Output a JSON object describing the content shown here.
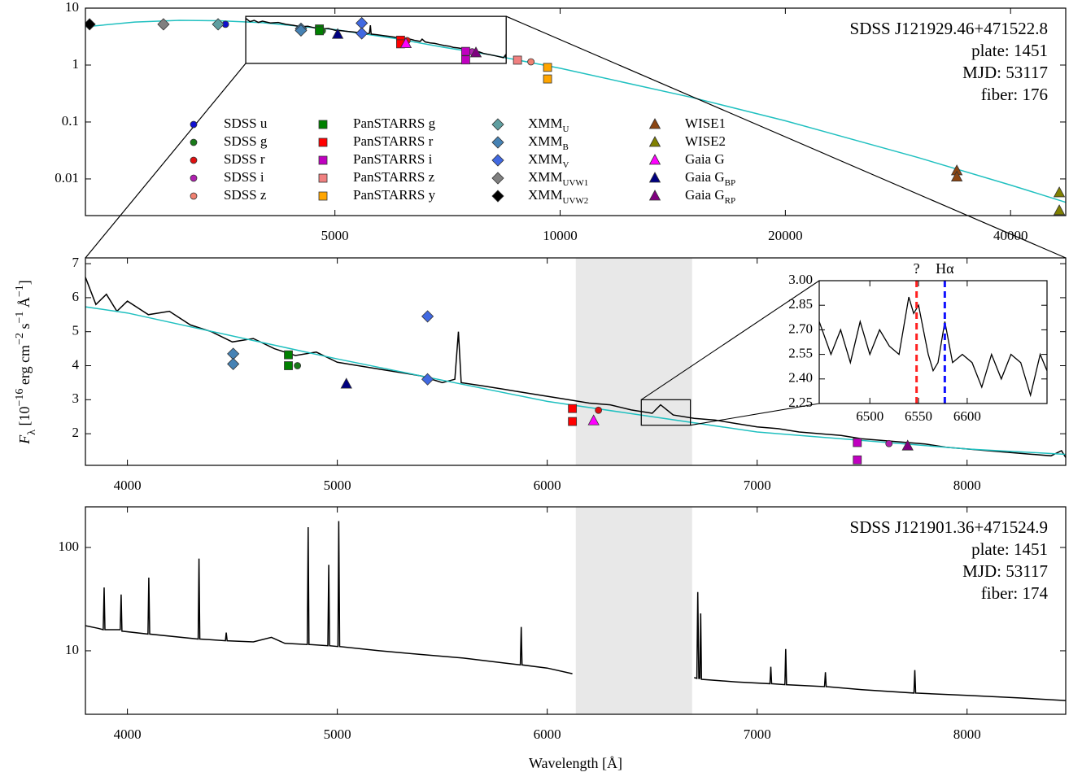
{
  "chart_data": [
    {
      "type": "sed",
      "xscale": "log",
      "yscale": "log",
      "xlim": [
        2320,
        47400
      ],
      "ylim": [
        0.00227,
        10
      ],
      "xticks": [
        5000,
        10000,
        20000,
        40000
      ],
      "yticks": [
        0.01,
        0.1,
        1,
        10
      ],
      "text_lines": [
        "SDSS J121929.46+471522.8",
        "plate: 1451",
        "MJD: 53117",
        "fiber: 176"
      ],
      "model": {
        "color": "#20c0c0",
        "x": [
          2320,
          2700,
          3100,
          3500,
          4000,
          5000,
          6000,
          7000,
          8000,
          10000,
          15000,
          20000,
          30000,
          40000,
          47400
        ],
        "values": [
          4.7,
          5.7,
          6.1,
          6.0,
          5.55,
          4.2,
          2.95,
          2.05,
          1.55,
          0.88,
          0.27,
          0.105,
          0.024,
          0.0078,
          0.0039
        ]
      },
      "series": [
        {
          "name": "SDSS u",
          "marker": "circle",
          "color": "#1010d0",
          "x": [
            3570
          ],
          "values": [
            5.2
          ]
        },
        {
          "name": "SDSS g",
          "marker": "circle",
          "color": "#1a7a1a",
          "x": [
            4810
          ],
          "values": [
            4.0
          ]
        },
        {
          "name": "SDSS r",
          "marker": "circle",
          "color": "#e01010",
          "x": [
            6244
          ],
          "values": [
            2.69
          ]
        },
        {
          "name": "SDSS i",
          "marker": "circle",
          "color": "#b020b0",
          "x": [
            7628
          ],
          "values": [
            1.71
          ]
        },
        {
          "name": "SDSS z",
          "marker": "circle",
          "color": "#f08070",
          "x": [
            9140
          ],
          "values": [
            1.14
          ]
        },
        {
          "name": "PanSTARRS g",
          "marker": "square",
          "color": "#008000",
          "x": [
            4767,
            4767
          ],
          "values": [
            4.32,
            4.0
          ]
        },
        {
          "name": "PanSTARRS r",
          "marker": "square",
          "color": "#ff0000",
          "x": [
            6120,
            6120
          ],
          "values": [
            2.74,
            2.36
          ]
        },
        {
          "name": "PanSTARRS i",
          "marker": "square",
          "color": "#c000c0",
          "x": [
            7477,
            7477
          ],
          "values": [
            1.74,
            1.23
          ]
        },
        {
          "name": "PanSTARRS z",
          "marker": "square",
          "color": "#f08080",
          "x": [
            8770
          ],
          "values": [
            1.22
          ]
        },
        {
          "name": "PanSTARRS y",
          "marker": "square",
          "color": "#ffa500",
          "x": [
            9620,
            9620
          ],
          "values": [
            0.91,
            0.57
          ]
        },
        {
          "name": "XMM",
          "sub": "U",
          "marker": "diamond",
          "color": "#5f9ea0",
          "x": [
            3490
          ],
          "values": [
            5.2
          ]
        },
        {
          "name": "XMM",
          "sub": "B",
          "marker": "diamond",
          "color": "#4682b4",
          "x": [
            4504,
            4504
          ],
          "values": [
            4.35,
            4.05
          ]
        },
        {
          "name": "XMM",
          "sub": "V",
          "marker": "diamond",
          "color": "#4169e1",
          "x": [
            5430,
            5430
          ],
          "values": [
            5.45,
            3.6
          ]
        },
        {
          "name": "XMM",
          "sub": "UVW1",
          "marker": "diamond",
          "color": "#808080",
          "x": [
            2950
          ],
          "values": [
            5.2
          ]
        },
        {
          "name": "XMM",
          "sub": "UVW2",
          "marker": "diamond",
          "color": "#000000",
          "x": [
            2350
          ],
          "values": [
            5.2
          ]
        },
        {
          "name": "WISE1",
          "marker": "triangle",
          "color": "#8b4513",
          "x": [
            33900,
            33900
          ],
          "values": [
            0.0139,
            0.0108
          ]
        },
        {
          "name": "WISE2",
          "marker": "triangle",
          "color": "#808000",
          "x": [
            46470,
            46470
          ],
          "values": [
            0.00572,
            0.00277
          ]
        },
        {
          "name": "Gaia G",
          "marker": "triangle",
          "color": "#ff00ff",
          "x": [
            6221
          ],
          "values": [
            2.38
          ]
        },
        {
          "name": "Gaia G",
          "sub": "BP",
          "marker": "triangle",
          "color": "#000080",
          "x": [
            5043
          ],
          "values": [
            3.46
          ]
        },
        {
          "name": "Gaia G",
          "sub": "RP",
          "marker": "triangle",
          "color": "#800080",
          "x": [
            7717
          ],
          "values": [
            1.64
          ]
        }
      ]
    },
    {
      "type": "spectrum",
      "xlim": [
        3800,
        8470
      ],
      "ylim": [
        1.07,
        7.17
      ],
      "xticks": [
        4000,
        5000,
        6000,
        7000,
        8000
      ],
      "yticks": [
        2,
        3,
        4,
        5,
        6,
        7
      ],
      "ylabel": [
        [
          "F",
          ""
        ],
        [
          "λ",
          "sub"
        ],
        [
          " [10",
          ""
        ],
        [
          "−16",
          "super"
        ],
        [
          " erg cm",
          ""
        ],
        [
          "−2",
          "super"
        ],
        [
          " s",
          ""
        ],
        [
          "−1",
          "super"
        ],
        [
          " Å",
          ""
        ],
        [
          "−1",
          "super"
        ],
        [
          "]",
          ""
        ]
      ],
      "shaded_region": [
        6136,
        6690
      ],
      "shaded_color": "#e8e8e8",
      "spectrum": {
        "color": "#000000",
        "x": [
          3800,
          3850,
          3900,
          3950,
          4000,
          4100,
          4200,
          4300,
          4400,
          4500,
          4600,
          4700,
          4800,
          4900,
          5000,
          5100,
          5200,
          5300,
          5400,
          5500,
          5560,
          5577,
          5590,
          5700,
          5800,
          5900,
          6000,
          6100,
          6200,
          6300,
          6400,
          6500,
          6540,
          6600,
          6700,
          6800,
          6900,
          7000,
          7100,
          7200,
          7300,
          7400,
          7500,
          7600,
          7700,
          7800,
          7900,
          8000,
          8100,
          8200,
          8300,
          8400,
          8450,
          8470
        ],
        "values": [
          6.6,
          5.8,
          6.1,
          5.6,
          5.9,
          5.5,
          5.6,
          5.2,
          5.0,
          4.7,
          4.8,
          4.5,
          4.3,
          4.4,
          4.1,
          4.0,
          3.9,
          3.8,
          3.7,
          3.5,
          3.6,
          5.0,
          3.5,
          3.4,
          3.3,
          3.2,
          3.1,
          3.0,
          2.9,
          2.85,
          2.7,
          2.6,
          2.85,
          2.55,
          2.45,
          2.4,
          2.3,
          2.2,
          2.15,
          2.05,
          2.0,
          1.95,
          1.85,
          1.8,
          1.75,
          1.7,
          1.6,
          1.55,
          1.5,
          1.45,
          1.4,
          1.35,
          1.5,
          1.3
        ]
      }
    },
    {
      "type": "inset",
      "xlim": [
        6448,
        6682
      ],
      "ylim": [
        2.25,
        3.0
      ],
      "xticks": [
        6500,
        6550,
        6600
      ],
      "yticks": [
        2.25,
        {
          "value": 2.4,
          "label": "2.40"
        },
        2.55,
        {
          "value": 2.7,
          "label": "2.70"
        },
        2.85,
        {
          "value": 3.0,
          "label": "3.00"
        }
      ],
      "lines": [
        {
          "x": 6548,
          "label": "?",
          "color": "#ff2020"
        },
        {
          "x": 6577,
          "label": "Hα",
          "color": "#1010ff"
        }
      ],
      "spectrum": {
        "color": "#000000",
        "x": [
          6448,
          6460,
          6470,
          6480,
          6490,
          6500,
          6510,
          6520,
          6530,
          6540,
          6545,
          6550,
          6555,
          6560,
          6565,
          6570,
          6577,
          6585,
          6595,
          6605,
          6615,
          6625,
          6635,
          6645,
          6655,
          6665,
          6675,
          6682
        ],
        "values": [
          2.75,
          2.55,
          2.7,
          2.5,
          2.75,
          2.55,
          2.7,
          2.6,
          2.55,
          2.9,
          2.8,
          2.85,
          2.7,
          2.55,
          2.45,
          2.5,
          2.75,
          2.5,
          2.55,
          2.5,
          2.35,
          2.55,
          2.4,
          2.55,
          2.5,
          2.3,
          2.55,
          2.45
        ]
      }
    },
    {
      "type": "spectrum",
      "yscale": "log",
      "xlim": [
        3800,
        8470
      ],
      "ylim": [
        2.43,
        247
      ],
      "xticks": [
        4000,
        5000,
        6000,
        7000,
        8000
      ],
      "yticks": [
        10,
        100
      ],
      "xlabel": "Wavelength [Å]",
      "text_lines": [
        "SDSS J121901.36+471524.9",
        "plate: 1451",
        "MJD: 53117",
        "fiber: 174"
      ],
      "shaded_region": [
        6136,
        6690
      ],
      "shaded_color": "#e8e8e8",
      "spectrum": {
        "color": "#000000",
        "x": [
          3800,
          3860,
          3885,
          3889,
          3893,
          3966,
          3970,
          3974,
          4098,
          4102,
          4106,
          4337,
          4341,
          4345,
          4467,
          4471,
          4475,
          4600,
          4686,
          4750,
          4857,
          4861,
          4865,
          4955,
          4959,
          4963,
          5003,
          5007,
          5011,
          5200,
          5400,
          5600,
          5800,
          5872,
          5876,
          5880,
          6000,
          6120,
          6400,
          6700,
          6713,
          6717,
          6722,
          6727,
          6731,
          6735,
          6900,
          7061,
          7065,
          7069,
          7132,
          7136,
          7140,
          7321,
          7325,
          7329,
          7500,
          7747,
          7751,
          7755,
          8000,
          8250,
          8470
        ],
        "values": [
          17.5,
          16.5,
          16,
          41,
          16,
          16,
          35,
          15.5,
          14.5,
          51,
          14.5,
          13,
          78,
          13,
          12.5,
          15,
          12.5,
          12.2,
          13.5,
          11.8,
          11.5,
          157,
          11.5,
          11.2,
          68,
          11.2,
          11,
          180,
          11,
          10,
          9.2,
          8.5,
          7.6,
          7.3,
          17,
          7.3,
          6.8,
          6.0,
          null,
          5.5,
          5.4,
          37,
          5.4,
          5.4,
          23,
          5.3,
          5.0,
          4.8,
          7.0,
          4.8,
          4.7,
          10.4,
          4.7,
          4.5,
          6.2,
          4.5,
          4.2,
          3.9,
          6.5,
          3.9,
          3.7,
          3.5,
          3.3
        ]
      }
    }
  ]
}
